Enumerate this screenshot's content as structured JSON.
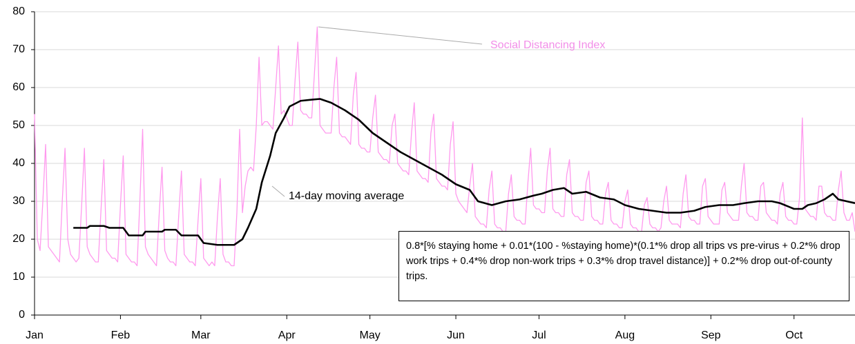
{
  "chart_data": {
    "type": "line",
    "annotation": "0.8*[% staying home + 0.01*(100 - %staying home)*(0.1*% drop all trips vs pre-virus + 0.2*% drop work trips + 0.4*% drop non-work trips + 0.3*% drop travel distance)] + 0.2*% drop out-of-county trips.",
    "xlim": [
      0,
      296
    ],
    "xticks": [
      {
        "value": 0,
        "label": "Jan"
      },
      {
        "value": 31,
        "label": "Feb"
      },
      {
        "value": 60,
        "label": "Mar"
      },
      {
        "value": 91,
        "label": "Apr"
      },
      {
        "value": 121,
        "label": "May"
      },
      {
        "value": 152,
        "label": "Jun"
      },
      {
        "value": 182,
        "label": "Jul"
      },
      {
        "value": 213,
        "label": "Aug"
      },
      {
        "value": 244,
        "label": "Sep"
      },
      {
        "value": 274,
        "label": "Oct"
      }
    ],
    "ylim": [
      0,
      80
    ],
    "yticks": [
      0,
      10,
      20,
      30,
      40,
      50,
      60,
      70,
      80
    ],
    "grid": true,
    "series": [
      {
        "name": "Social Distancing Index",
        "color": "#ff99ee",
        "x": [
          0,
          1,
          2,
          3,
          4,
          5,
          6,
          7,
          8,
          9,
          10,
          11,
          12,
          13,
          14,
          15,
          16,
          17,
          18,
          19,
          20,
          21,
          22,
          23,
          24,
          25,
          26,
          27,
          28,
          29,
          30,
          31,
          32,
          33,
          34,
          35,
          36,
          37,
          38,
          39,
          40,
          41,
          42,
          43,
          44,
          45,
          46,
          47,
          48,
          49,
          50,
          51,
          52,
          53,
          54,
          55,
          56,
          57,
          58,
          59,
          60,
          61,
          62,
          63,
          64,
          65,
          66,
          67,
          68,
          69,
          70,
          71,
          72,
          73,
          74,
          75,
          76,
          77,
          78,
          79,
          80,
          81,
          82,
          83,
          84,
          85,
          86,
          87,
          88,
          89,
          90,
          91,
          92,
          93,
          94,
          95,
          96,
          97,
          98,
          99,
          100,
          101,
          102,
          103,
          104,
          105,
          106,
          107,
          108,
          109,
          110,
          111,
          112,
          113,
          114,
          115,
          116,
          117,
          118,
          119,
          120,
          121,
          122,
          123,
          124,
          125,
          126,
          127,
          128,
          129,
          130,
          131,
          132,
          133,
          134,
          135,
          136,
          137,
          138,
          139,
          140,
          141,
          142,
          143,
          144,
          145,
          146,
          147,
          148,
          149,
          150,
          151,
          152,
          153,
          154,
          155,
          156,
          157,
          158,
          159,
          160,
          161,
          162,
          163,
          164,
          165,
          166,
          167,
          168,
          169,
          170,
          171,
          172,
          173,
          174,
          175,
          176,
          177,
          178,
          179,
          180,
          181,
          182,
          183,
          184,
          185,
          186,
          187,
          188,
          189,
          190,
          191,
          192,
          193,
          194,
          195,
          196,
          197,
          198,
          199,
          200,
          201,
          202,
          203,
          204,
          205,
          206,
          207,
          208,
          209,
          210,
          211,
          212,
          213,
          214,
          215,
          216,
          217,
          218,
          219,
          220,
          221,
          222,
          223,
          224,
          225,
          226,
          227,
          228,
          229,
          230,
          231,
          232,
          233,
          234,
          235,
          236,
          237,
          238,
          239,
          240,
          241,
          242,
          243,
          244,
          245,
          246,
          247,
          248,
          249,
          250,
          251,
          252,
          253,
          254,
          255,
          256,
          257,
          258,
          259,
          260,
          261,
          262,
          263,
          264,
          265,
          266,
          267,
          268,
          269,
          270,
          271,
          272,
          273,
          274,
          275,
          276,
          277,
          278,
          279,
          280,
          281,
          282,
          283,
          284,
          285,
          286,
          287,
          288,
          289,
          290,
          291,
          292,
          293,
          294,
          295,
          296
        ],
        "values": [
          53,
          20,
          17,
          30,
          45,
          18,
          17,
          16,
          15,
          14,
          30,
          44,
          20,
          16,
          15,
          14,
          15,
          29,
          44,
          18,
          16,
          15,
          14,
          14,
          28,
          41,
          17,
          16,
          15,
          15,
          14,
          29,
          42,
          16,
          15,
          14,
          14,
          13,
          30,
          49,
          18,
          16,
          15,
          14,
          13,
          27,
          39,
          17,
          15,
          14,
          14,
          13,
          26,
          38,
          16,
          15,
          14,
          14,
          13,
          25,
          36,
          15,
          14,
          13,
          14,
          13,
          26,
          36,
          16,
          14,
          14,
          13,
          13,
          27,
          49,
          27,
          34,
          38,
          39,
          38,
          50,
          68,
          50,
          51,
          51,
          50,
          49,
          60,
          71,
          53,
          54,
          52,
          50,
          50,
          62,
          72,
          54,
          53,
          53,
          52,
          52,
          64,
          76,
          50,
          49,
          48,
          48,
          48,
          60,
          68,
          48,
          47,
          47,
          46,
          45,
          58,
          64,
          45,
          44,
          44,
          43,
          43,
          52,
          58,
          43,
          42,
          41,
          41,
          40,
          50,
          53,
          40,
          39,
          38,
          38,
          37,
          48,
          56,
          38,
          37,
          36,
          36,
          35,
          48,
          53,
          36,
          35,
          34,
          34,
          33,
          45,
          51,
          32,
          30,
          29,
          28,
          27,
          34,
          40,
          26,
          25,
          24,
          24,
          23,
          33,
          38,
          24,
          23,
          23,
          22,
          22,
          32,
          37,
          26,
          25,
          25,
          24,
          24,
          35,
          44,
          29,
          28,
          28,
          27,
          27,
          38,
          44,
          28,
          27,
          27,
          26,
          26,
          37,
          41,
          27,
          26,
          26,
          25,
          25,
          35,
          38,
          26,
          25,
          25,
          24,
          24,
          32,
          35,
          25,
          24,
          24,
          23,
          23,
          30,
          33,
          24,
          23,
          23,
          22,
          22,
          29,
          31,
          24,
          23,
          23,
          22,
          23,
          30,
          34,
          25,
          24,
          24,
          24,
          23,
          32,
          37,
          26,
          25,
          25,
          24,
          24,
          34,
          36,
          26,
          25,
          24,
          24,
          24,
          33,
          35,
          27,
          26,
          25,
          25,
          25,
          34,
          40,
          27,
          26,
          26,
          25,
          25,
          34,
          35,
          27,
          26,
          25,
          25,
          24,
          32,
          35,
          26,
          25,
          25,
          24,
          24,
          31,
          52,
          28,
          27,
          26,
          26,
          25,
          34,
          34,
          27,
          26,
          26,
          25,
          25,
          33,
          38,
          27,
          25,
          25,
          27,
          22
        ]
      },
      {
        "name": "14-day moving average",
        "color": "#000000",
        "x": [
          14,
          19,
          20,
          25,
          27,
          32,
          34,
          39,
          40,
          46,
          47,
          51,
          53,
          59,
          61,
          66,
          72,
          75,
          77,
          80,
          82,
          85,
          87,
          90,
          92,
          96,
          100,
          103,
          107,
          112,
          117,
          122,
          127,
          132,
          137,
          142,
          147,
          152,
          157,
          160,
          165,
          170,
          175,
          180,
          183,
          187,
          191,
          194,
          199,
          204,
          209,
          213,
          218,
          223,
          228,
          233,
          238,
          242,
          247,
          252,
          256,
          261,
          266,
          269,
          274,
          277,
          279,
          282,
          285,
          288,
          290,
          296
        ],
        "values": [
          23,
          23,
          23.5,
          23.5,
          23,
          23,
          21,
          21,
          22,
          22,
          22.5,
          22.5,
          21,
          21,
          19,
          18.5,
          18.5,
          20,
          23,
          28,
          35,
          42,
          48,
          52,
          55,
          56.5,
          56.8,
          57,
          56,
          54,
          51.5,
          48,
          45.5,
          43,
          41,
          39,
          37,
          34.5,
          33,
          30,
          29,
          30,
          30.5,
          31.5,
          32,
          33,
          33.5,
          32,
          32.5,
          31,
          30.5,
          29,
          28,
          27.5,
          27,
          27,
          27.5,
          28.5,
          29,
          29,
          29.5,
          30,
          30,
          29.5,
          28,
          28,
          29,
          29.5,
          30.5,
          32,
          30.5,
          29.5
        ]
      }
    ]
  }
}
